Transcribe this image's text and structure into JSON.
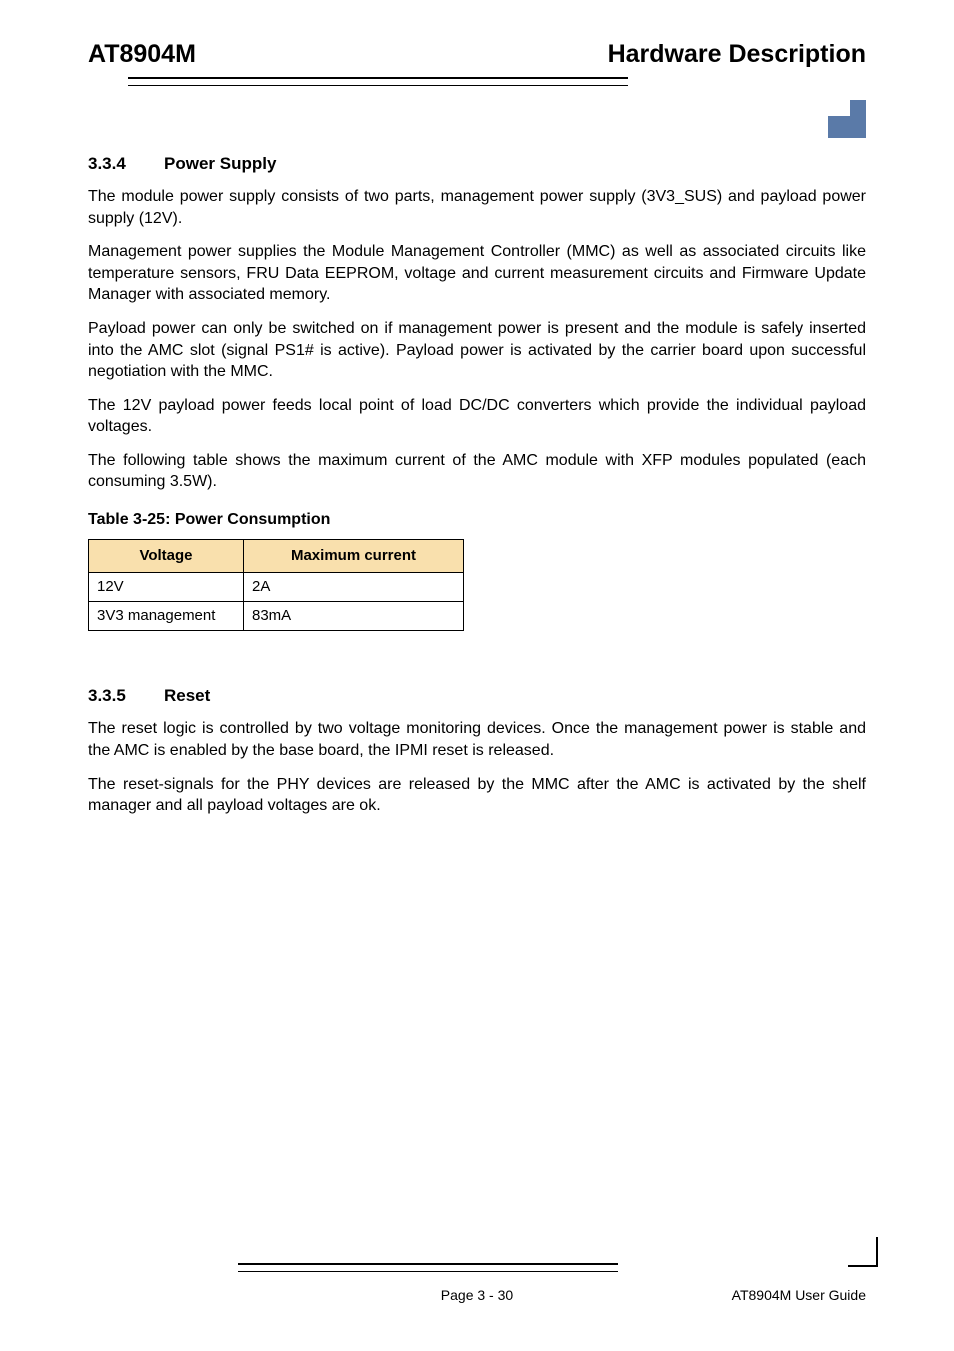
{
  "header": {
    "left": "AT8904M",
    "right": "Hardware Description"
  },
  "logo": {
    "color": "#5a7aa8"
  },
  "sections": {
    "power_supply": {
      "number": "3.3.4",
      "title": "Power Supply",
      "paragraphs": [
        "The module power supply consists of two parts, management power supply (3V3_SUS) and payload power supply (12V).",
        "Management power supplies the Module Management Controller (MMC) as well as associated circuits like temperature sensors, FRU Data EEPROM, voltage and current measurement circuits and Firmware Update Manager with associated memory.",
        "Payload power can only be switched on if management power is present and the module is safely inserted into the AMC slot (signal PS1# is active). Payload power is activated by the carrier board upon successful negotiation with the MMC.",
        "The 12V payload power feeds local point of load DC/DC converters which provide the individual payload voltages.",
        "The following table shows the maximum current of the AMC module with XFP modules populated (each consuming 3.5W)."
      ]
    },
    "reset": {
      "number": "3.3.5",
      "title": "Reset",
      "paragraphs": [
        "The reset logic is controlled by two voltage monitoring devices. Once the management power is stable and the AMC is enabled by the base board, the IPMI reset is released.",
        "The reset-signals for the PHY devices are released by the MMC after the AMC is activated by the shelf manager and all payload voltages are ok."
      ]
    }
  },
  "table": {
    "caption": "Table 3-25:  Power Consumption",
    "header_bg": "#f9e0ad",
    "columns": [
      "Voltage",
      "Maximum current"
    ],
    "rows": [
      [
        "12V",
        "2A"
      ],
      [
        "3V3 management",
        "83mA"
      ]
    ]
  },
  "footer": {
    "page": "Page 3 - 30",
    "guide": "AT8904M User Guide"
  }
}
